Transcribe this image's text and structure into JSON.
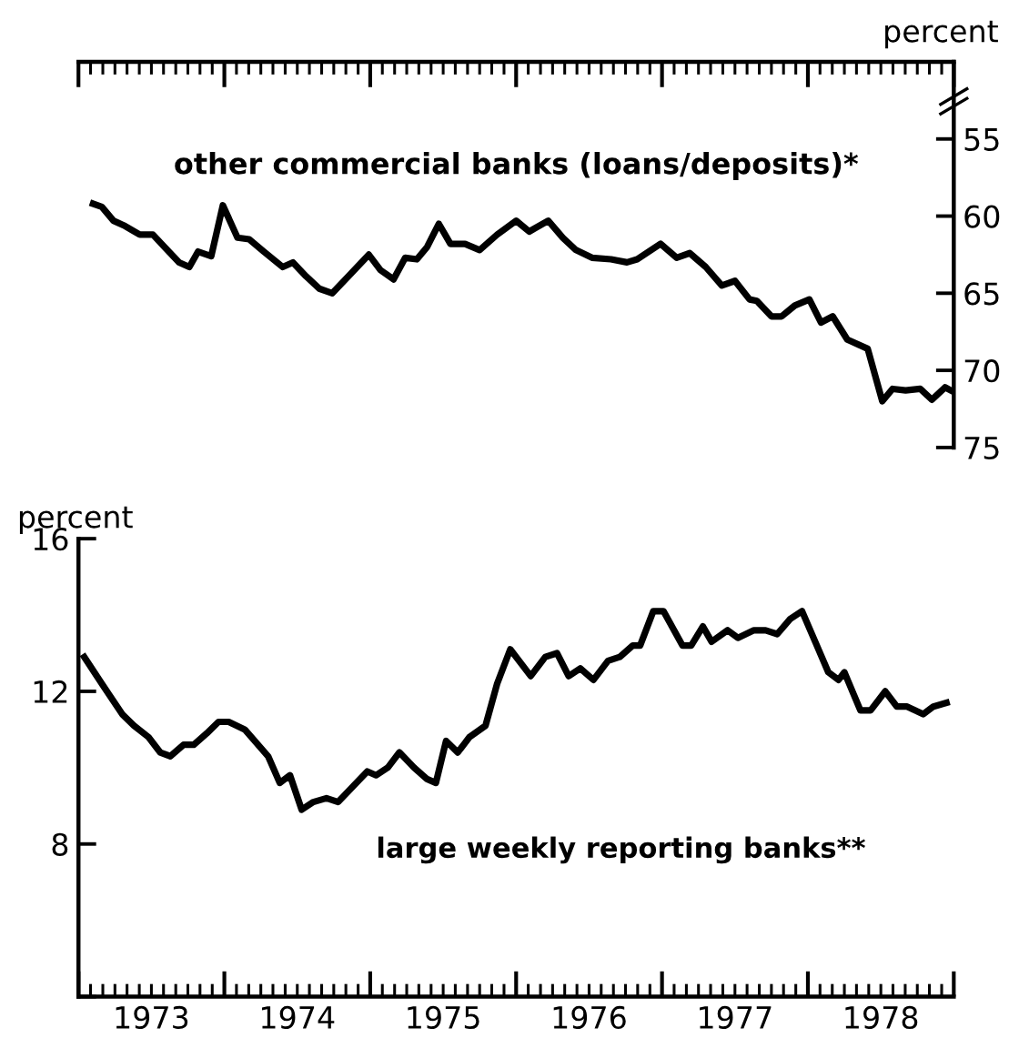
{
  "chart_data": [
    {
      "type": "line",
      "ylabel": "percent",
      "xlim": [
        1973,
        1979
      ],
      "ylim": [
        75,
        50
      ],
      "xticks": [
        {
          "value": 1973,
          "label": null
        },
        {
          "value": 1973.083,
          "label": null
        },
        {
          "value": 1973.167,
          "label": null
        },
        {
          "value": 1973.25,
          "label": null
        },
        {
          "value": 1973.333,
          "label": null
        },
        {
          "value": 1973.417,
          "label": null
        },
        {
          "value": 1973.5,
          "label": null
        },
        {
          "value": 1973.583,
          "label": null
        },
        {
          "value": 1973.667,
          "label": null
        },
        {
          "value": 1973.75,
          "label": null
        },
        {
          "value": 1973.833,
          "label": null
        },
        {
          "value": 1973.917,
          "label": null
        },
        {
          "value": 1974,
          "label": null
        },
        {
          "value": 1974.083,
          "label": null
        },
        {
          "value": 1974.167,
          "label": null
        },
        {
          "value": 1974.25,
          "label": null
        },
        {
          "value": 1974.333,
          "label": null
        },
        {
          "value": 1974.417,
          "label": null
        },
        {
          "value": 1974.5,
          "label": null
        },
        {
          "value": 1974.583,
          "label": null
        },
        {
          "value": 1974.667,
          "label": null
        },
        {
          "value": 1974.75,
          "label": null
        },
        {
          "value": 1974.833,
          "label": null
        },
        {
          "value": 1974.917,
          "label": null
        },
        {
          "value": 1975,
          "label": null
        },
        {
          "value": 1975.083,
          "label": null
        },
        {
          "value": 1975.167,
          "label": null
        },
        {
          "value": 1975.25,
          "label": null
        },
        {
          "value": 1975.333,
          "label": null
        },
        {
          "value": 1975.417,
          "label": null
        },
        {
          "value": 1975.5,
          "label": null
        },
        {
          "value": 1975.583,
          "label": null
        },
        {
          "value": 1975.667,
          "label": null
        },
        {
          "value": 1975.75,
          "label": null
        },
        {
          "value": 1975.833,
          "label": null
        },
        {
          "value": 1975.917,
          "label": null
        },
        {
          "value": 1976,
          "label": null
        },
        {
          "value": 1976.083,
          "label": null
        },
        {
          "value": 1976.167,
          "label": null
        },
        {
          "value": 1976.25,
          "label": null
        },
        {
          "value": 1976.333,
          "label": null
        },
        {
          "value": 1976.417,
          "label": null
        },
        {
          "value": 1976.5,
          "label": null
        },
        {
          "value": 1976.583,
          "label": null
        },
        {
          "value": 1976.667,
          "label": null
        },
        {
          "value": 1976.75,
          "label": null
        },
        {
          "value": 1976.833,
          "label": null
        },
        {
          "value": 1976.917,
          "label": null
        },
        {
          "value": 1977,
          "label": null
        },
        {
          "value": 1977.083,
          "label": null
        },
        {
          "value": 1977.167,
          "label": null
        },
        {
          "value": 1977.25,
          "label": null
        },
        {
          "value": 1977.333,
          "label": null
        },
        {
          "value": 1977.417,
          "label": null
        },
        {
          "value": 1977.5,
          "label": null
        },
        {
          "value": 1977.583,
          "label": null
        },
        {
          "value": 1977.667,
          "label": null
        },
        {
          "value": 1977.75,
          "label": null
        },
        {
          "value": 1977.833,
          "label": null
        },
        {
          "value": 1977.917,
          "label": null
        },
        {
          "value": 1978,
          "label": null
        },
        {
          "value": 1978.083,
          "label": null
        },
        {
          "value": 1978.167,
          "label": null
        },
        {
          "value": 1978.25,
          "label": null
        },
        {
          "value": 1978.333,
          "label": null
        },
        {
          "value": 1978.417,
          "label": null
        },
        {
          "value": 1978.5,
          "label": null
        },
        {
          "value": 1978.583,
          "label": null
        },
        {
          "value": 1978.667,
          "label": null
        },
        {
          "value": 1978.75,
          "label": null
        },
        {
          "value": 1978.833,
          "label": null
        },
        {
          "value": 1978.917,
          "label": null
        },
        {
          "value": 1979,
          "label": null
        }
      ],
      "yticks": [
        55,
        60,
        65,
        70,
        75
      ],
      "tick_labels": "y",
      "grid": false,
      "legend": false,
      "series": [
        {
          "name": "other commercial banks (loans/deposits)*",
          "color": "#000000",
          "x": [
            1973.1,
            1973.16,
            1973.24,
            1973.31,
            1973.42,
            1973.51,
            1973.6,
            1973.69,
            1973.76,
            1973.82,
            1973.91,
            1973.99,
            1974.09,
            1974.17,
            1974.27,
            1974.4,
            1974.47,
            1974.56,
            1974.65,
            1974.74,
            1974.85,
            1974.99,
            1975.07,
            1975.16,
            1975.24,
            1975.32,
            1975.39,
            1975.47,
            1975.55,
            1975.65,
            1975.75,
            1975.87,
            1976.0,
            1976.09,
            1976.22,
            1976.32,
            1976.41,
            1976.52,
            1976.65,
            1976.76,
            1976.83,
            1976.99,
            1977.1,
            1977.19,
            1977.3,
            1977.41,
            1977.5,
            1977.6,
            1977.65,
            1977.75,
            1977.82,
            1977.91,
            1978.01,
            1978.09,
            1978.17,
            1978.27,
            1978.41,
            1978.51,
            1978.58,
            1978.67,
            1978.77,
            1978.85,
            1978.94,
            1979.0
          ],
          "values": [
            59.2,
            59.4,
            60.3,
            60.6,
            61.2,
            61.2,
            62.1,
            63.0,
            63.3,
            62.3,
            62.6,
            59.3,
            61.4,
            61.5,
            62.3,
            63.3,
            63.0,
            63.9,
            64.7,
            65.0,
            63.9,
            62.5,
            63.5,
            64.1,
            62.7,
            62.8,
            62.0,
            60.5,
            61.8,
            61.8,
            62.2,
            61.2,
            60.3,
            61.0,
            60.3,
            61.4,
            62.2,
            62.7,
            62.8,
            63.0,
            62.8,
            61.8,
            62.7,
            62.4,
            63.3,
            64.5,
            64.2,
            65.4,
            65.5,
            66.5,
            66.5,
            65.8,
            65.4,
            66.9,
            66.5,
            68.0,
            68.6,
            72.0,
            71.2,
            71.3,
            71.2,
            71.9,
            71.1,
            71.4
          ]
        }
      ]
    },
    {
      "type": "line",
      "ylabel": "percent",
      "xlim": [
        1973,
        1979
      ],
      "ylim": [
        4,
        16
      ],
      "xticks": [
        {
          "value": 1973,
          "label": null
        },
        {
          "value": 1973.083,
          "label": null
        },
        {
          "value": 1973.167,
          "label": null
        },
        {
          "value": 1973.25,
          "label": null
        },
        {
          "value": 1973.333,
          "label": null
        },
        {
          "value": 1973.417,
          "label": null
        },
        {
          "value": 1973.5,
          "label": "1973"
        },
        {
          "value": 1973.583,
          "label": null
        },
        {
          "value": 1973.667,
          "label": null
        },
        {
          "value": 1973.75,
          "label": null
        },
        {
          "value": 1973.833,
          "label": null
        },
        {
          "value": 1973.917,
          "label": null
        },
        {
          "value": 1974,
          "label": null
        },
        {
          "value": 1974.083,
          "label": null
        },
        {
          "value": 1974.167,
          "label": null
        },
        {
          "value": 1974.25,
          "label": null
        },
        {
          "value": 1974.333,
          "label": null
        },
        {
          "value": 1974.417,
          "label": null
        },
        {
          "value": 1974.5,
          "label": "1974"
        },
        {
          "value": 1974.583,
          "label": null
        },
        {
          "value": 1974.667,
          "label": null
        },
        {
          "value": 1974.75,
          "label": null
        },
        {
          "value": 1974.833,
          "label": null
        },
        {
          "value": 1974.917,
          "label": null
        },
        {
          "value": 1975,
          "label": null
        },
        {
          "value": 1975.083,
          "label": null
        },
        {
          "value": 1975.167,
          "label": null
        },
        {
          "value": 1975.25,
          "label": null
        },
        {
          "value": 1975.333,
          "label": null
        },
        {
          "value": 1975.417,
          "label": null
        },
        {
          "value": 1975.5,
          "label": "1975"
        },
        {
          "value": 1975.583,
          "label": null
        },
        {
          "value": 1975.667,
          "label": null
        },
        {
          "value": 1975.75,
          "label": null
        },
        {
          "value": 1975.833,
          "label": null
        },
        {
          "value": 1975.917,
          "label": null
        },
        {
          "value": 1976,
          "label": null
        },
        {
          "value": 1976.083,
          "label": null
        },
        {
          "value": 1976.167,
          "label": null
        },
        {
          "value": 1976.25,
          "label": null
        },
        {
          "value": 1976.333,
          "label": null
        },
        {
          "value": 1976.417,
          "label": null
        },
        {
          "value": 1976.5,
          "label": "1976"
        },
        {
          "value": 1976.583,
          "label": null
        },
        {
          "value": 1976.667,
          "label": null
        },
        {
          "value": 1976.75,
          "label": null
        },
        {
          "value": 1976.833,
          "label": null
        },
        {
          "value": 1976.917,
          "label": null
        },
        {
          "value": 1977,
          "label": null
        },
        {
          "value": 1977.083,
          "label": null
        },
        {
          "value": 1977.167,
          "label": null
        },
        {
          "value": 1977.25,
          "label": null
        },
        {
          "value": 1977.333,
          "label": null
        },
        {
          "value": 1977.417,
          "label": null
        },
        {
          "value": 1977.5,
          "label": "1977"
        },
        {
          "value": 1977.583,
          "label": null
        },
        {
          "value": 1977.667,
          "label": null
        },
        {
          "value": 1977.75,
          "label": null
        },
        {
          "value": 1977.833,
          "label": null
        },
        {
          "value": 1977.917,
          "label": null
        },
        {
          "value": 1978,
          "label": null
        },
        {
          "value": 1978.083,
          "label": null
        },
        {
          "value": 1978.167,
          "label": null
        },
        {
          "value": 1978.25,
          "label": null
        },
        {
          "value": 1978.333,
          "label": null
        },
        {
          "value": 1978.417,
          "label": null
        },
        {
          "value": 1978.5,
          "label": "1978"
        },
        {
          "value": 1978.583,
          "label": null
        },
        {
          "value": 1978.667,
          "label": null
        },
        {
          "value": 1978.75,
          "label": null
        },
        {
          "value": 1978.833,
          "label": null
        },
        {
          "value": 1978.917,
          "label": null
        },
        {
          "value": 1979,
          "label": null
        }
      ],
      "yticks": [
        {
          "value": 4,
          "label": null
        },
        8,
        12,
        16
      ],
      "grid": false,
      "legend": false,
      "series": [
        {
          "name": "large weekly reporting banks**",
          "color": "#000000",
          "x": [
            1973.04,
            1973.16,
            1973.3,
            1973.38,
            1973.48,
            1973.56,
            1973.63,
            1973.72,
            1973.79,
            1973.88,
            1973.96,
            1974.03,
            1974.14,
            1974.3,
            1974.38,
            1974.45,
            1974.53,
            1974.61,
            1974.7,
            1974.78,
            1974.88,
            1974.98,
            1975.04,
            1975.12,
            1975.2,
            1975.3,
            1975.39,
            1975.45,
            1975.52,
            1975.6,
            1975.68,
            1975.79,
            1975.87,
            1975.96,
            1976.1,
            1976.2,
            1976.28,
            1976.36,
            1976.44,
            1976.53,
            1976.63,
            1976.71,
            1976.8,
            1976.85,
            1976.94,
            1977.01,
            1977.14,
            1977.2,
            1977.28,
            1977.34,
            1977.45,
            1977.52,
            1977.63,
            1977.71,
            1977.79,
            1977.88,
            1977.96,
            1978.05,
            1978.14,
            1978.21,
            1978.25,
            1978.36,
            1978.43,
            1978.53,
            1978.61,
            1978.68,
            1978.79,
            1978.86,
            1978.95
          ],
          "values": [
            12.9,
            12.2,
            11.4,
            11.1,
            10.8,
            10.4,
            10.3,
            10.6,
            10.6,
            10.9,
            11.2,
            11.2,
            11.0,
            10.3,
            9.6,
            9.8,
            8.9,
            9.1,
            9.2,
            9.1,
            9.5,
            9.9,
            9.8,
            10.0,
            10.4,
            10.0,
            9.7,
            9.6,
            10.7,
            10.4,
            10.8,
            11.1,
            12.2,
            13.1,
            12.4,
            12.9,
            13.0,
            12.4,
            12.6,
            12.3,
            12.8,
            12.9,
            13.2,
            13.2,
            14.1,
            14.1,
            13.2,
            13.2,
            13.7,
            13.3,
            13.6,
            13.4,
            13.6,
            13.6,
            13.5,
            13.9,
            14.1,
            13.3,
            12.5,
            12.3,
            12.5,
            11.5,
            11.5,
            12.0,
            11.6,
            11.6,
            11.4,
            11.6,
            11.7
          ]
        }
      ]
    }
  ]
}
